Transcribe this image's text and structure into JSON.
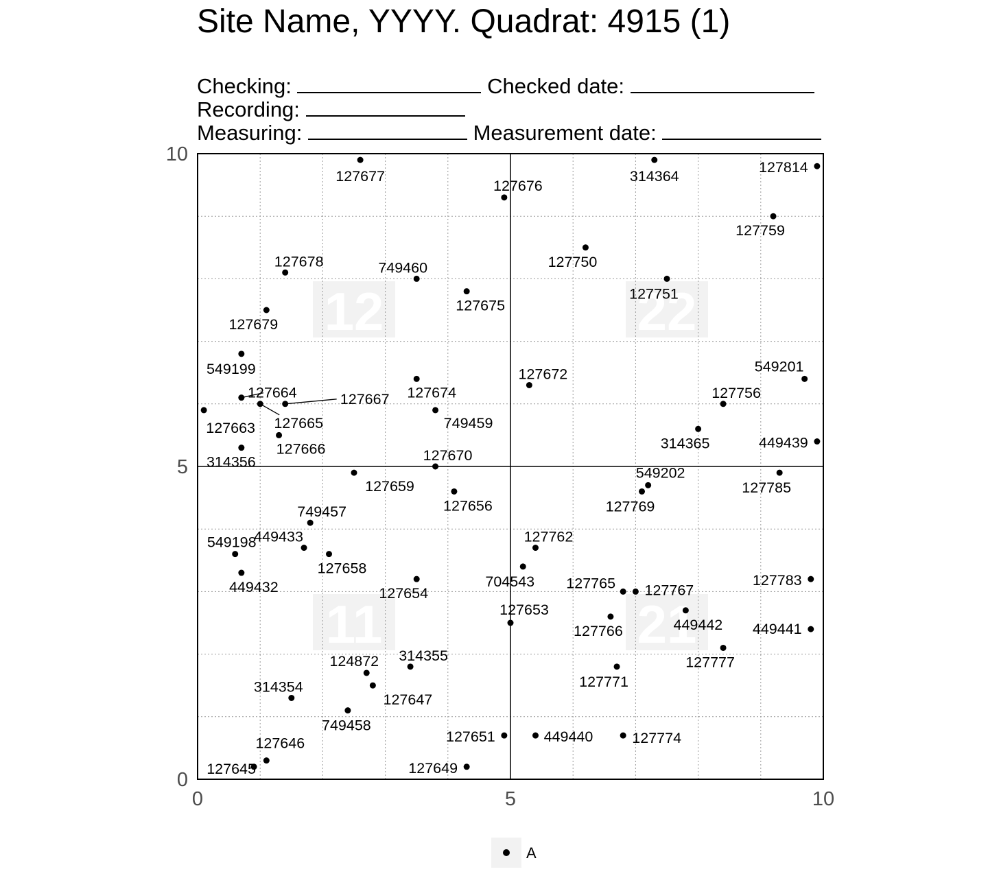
{
  "header": {
    "title": "Site Name, YYYY. Quadrat: 4915 (1)",
    "checking_label": "Checking:",
    "checked_date_label": "Checked date:",
    "recording_label": "Recording:",
    "measuring_label": "Measuring:",
    "measurement_date_label": "Measurement date:"
  },
  "legend": {
    "label": "A",
    "color": "#000000"
  },
  "chart_data": {
    "type": "scatter",
    "xlim": [
      0,
      10
    ],
    "ylim": [
      0,
      10
    ],
    "x_ticks": [
      "0",
      "5",
      "10"
    ],
    "y_ticks": [
      "0",
      "5",
      "10"
    ],
    "grid": true,
    "legend_position": "bottom",
    "subquadrats": [
      {
        "label": "11",
        "x": 2.5,
        "y": 2.5
      },
      {
        "label": "12",
        "x": 2.5,
        "y": 7.5
      },
      {
        "label": "21",
        "x": 7.5,
        "y": 2.5
      },
      {
        "label": "22",
        "x": 7.5,
        "y": 7.5
      }
    ],
    "points": [
      {
        "tag": "127677",
        "x": 2.6,
        "y": 9.9
      },
      {
        "tag": "127676",
        "x": 4.9,
        "y": 9.3
      },
      {
        "tag": "314364",
        "x": 7.3,
        "y": 9.9
      },
      {
        "tag": "127814",
        "x": 9.9,
        "y": 9.8
      },
      {
        "tag": "127759",
        "x": 9.2,
        "y": 9.0
      },
      {
        "tag": "127750",
        "x": 6.2,
        "y": 8.5
      },
      {
        "tag": "127678",
        "x": 1.4,
        "y": 8.1
      },
      {
        "tag": "749460",
        "x": 3.5,
        "y": 8.0
      },
      {
        "tag": "127751",
        "x": 7.5,
        "y": 8.0
      },
      {
        "tag": "127675",
        "x": 4.3,
        "y": 7.8
      },
      {
        "tag": "127679",
        "x": 1.1,
        "y": 7.5
      },
      {
        "tag": "549199",
        "x": 0.7,
        "y": 6.8
      },
      {
        "tag": "549201",
        "x": 9.7,
        "y": 6.4
      },
      {
        "tag": "127674",
        "x": 3.5,
        "y": 6.4
      },
      {
        "tag": "127672",
        "x": 5.3,
        "y": 6.3
      },
      {
        "tag": "127664",
        "x": 0.7,
        "y": 6.1
      },
      {
        "tag": "127665",
        "x": 1.0,
        "y": 6.0
      },
      {
        "tag": "127667",
        "x": 1.4,
        "y": 6.0
      },
      {
        "tag": "127756",
        "x": 8.4,
        "y": 6.0
      },
      {
        "tag": "127663",
        "x": 0.1,
        "y": 5.9
      },
      {
        "tag": "749459",
        "x": 3.8,
        "y": 5.9
      },
      {
        "tag": "314365",
        "x": 8.0,
        "y": 5.6
      },
      {
        "tag": "127666",
        "x": 1.3,
        "y": 5.5
      },
      {
        "tag": "449439",
        "x": 9.9,
        "y": 5.4
      },
      {
        "tag": "314356",
        "x": 0.7,
        "y": 5.3
      },
      {
        "tag": "127670",
        "x": 3.8,
        "y": 5.0
      },
      {
        "tag": "127659",
        "x": 2.5,
        "y": 4.9
      },
      {
        "tag": "127785",
        "x": 9.3,
        "y": 4.9
      },
      {
        "tag": "549202",
        "x": 7.2,
        "y": 4.7
      },
      {
        "tag": "127769",
        "x": 7.1,
        "y": 4.6
      },
      {
        "tag": "127656",
        "x": 4.1,
        "y": 4.6
      },
      {
        "tag": "749457",
        "x": 1.8,
        "y": 4.1
      },
      {
        "tag": "449433",
        "x": 1.7,
        "y": 3.7
      },
      {
        "tag": "127762",
        "x": 5.4,
        "y": 3.7
      },
      {
        "tag": "549198",
        "x": 0.6,
        "y": 3.6
      },
      {
        "tag": "127658",
        "x": 2.1,
        "y": 3.6
      },
      {
        "tag": "704543",
        "x": 5.2,
        "y": 3.4
      },
      {
        "tag": "449432",
        "x": 0.7,
        "y": 3.3
      },
      {
        "tag": "127654",
        "x": 3.5,
        "y": 3.2
      },
      {
        "tag": "127783",
        "x": 9.8,
        "y": 3.2
      },
      {
        "tag": "127765",
        "x": 6.8,
        "y": 3.0
      },
      {
        "tag": "127767",
        "x": 7.0,
        "y": 3.0
      },
      {
        "tag": "449442",
        "x": 7.8,
        "y": 2.7
      },
      {
        "tag": "127766",
        "x": 6.6,
        "y": 2.6
      },
      {
        "tag": "127653",
        "x": 5.0,
        "y": 2.5
      },
      {
        "tag": "449441",
        "x": 9.8,
        "y": 2.4
      },
      {
        "tag": "127777",
        "x": 8.4,
        "y": 2.1
      },
      {
        "tag": "314355",
        "x": 3.4,
        "y": 1.8
      },
      {
        "tag": "127771",
        "x": 6.7,
        "y": 1.8
      },
      {
        "tag": "124872",
        "x": 2.7,
        "y": 1.7
      },
      {
        "tag": "127647",
        "x": 2.8,
        "y": 1.5
      },
      {
        "tag": "314354",
        "x": 1.5,
        "y": 1.3
      },
      {
        "tag": "749458",
        "x": 2.4,
        "y": 1.1
      },
      {
        "tag": "127651",
        "x": 4.9,
        "y": 0.7
      },
      {
        "tag": "449440",
        "x": 5.4,
        "y": 0.7
      },
      {
        "tag": "127774",
        "x": 6.8,
        "y": 0.7
      },
      {
        "tag": "127646",
        "x": 1.1,
        "y": 0.3
      },
      {
        "tag": "127645",
        "x": 0.9,
        "y": 0.2
      },
      {
        "tag": "127649",
        "x": 4.3,
        "y": 0.2
      }
    ]
  }
}
